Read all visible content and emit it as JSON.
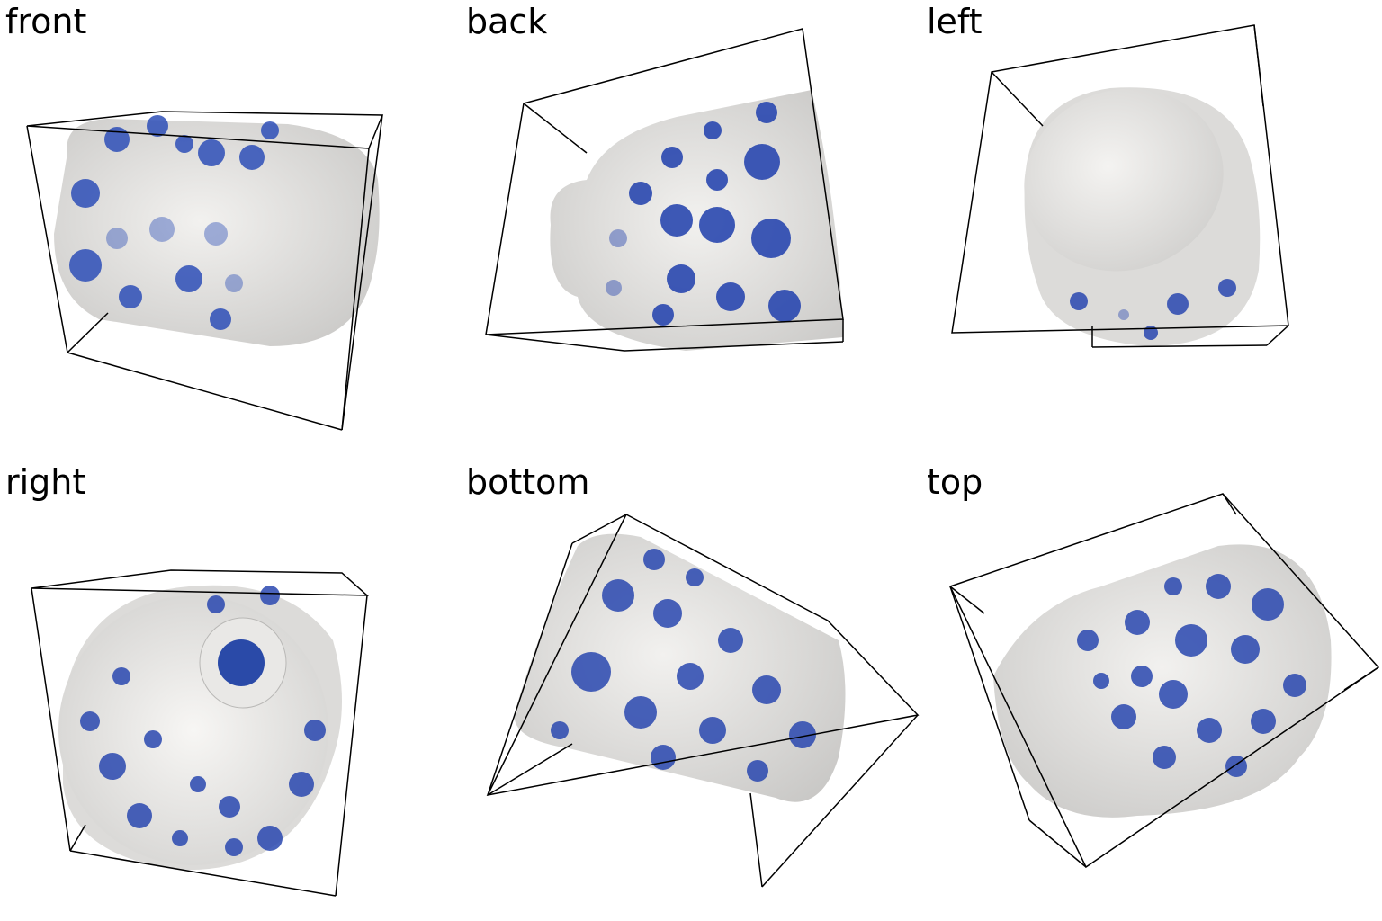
{
  "panels": [
    {
      "id": "front",
      "label": "front"
    },
    {
      "id": "back",
      "label": "back"
    },
    {
      "id": "left",
      "label": "left"
    },
    {
      "id": "right",
      "label": "right"
    },
    {
      "id": "bottom",
      "label": "bottom"
    },
    {
      "id": "top",
      "label": "top"
    }
  ],
  "colors": {
    "porcelain": "#e8e7e5",
    "porcelain_shade": "#cfcecc",
    "flower_blue": "#2a48b0",
    "flower_light": "#7d93d6",
    "frame": "#000000"
  }
}
